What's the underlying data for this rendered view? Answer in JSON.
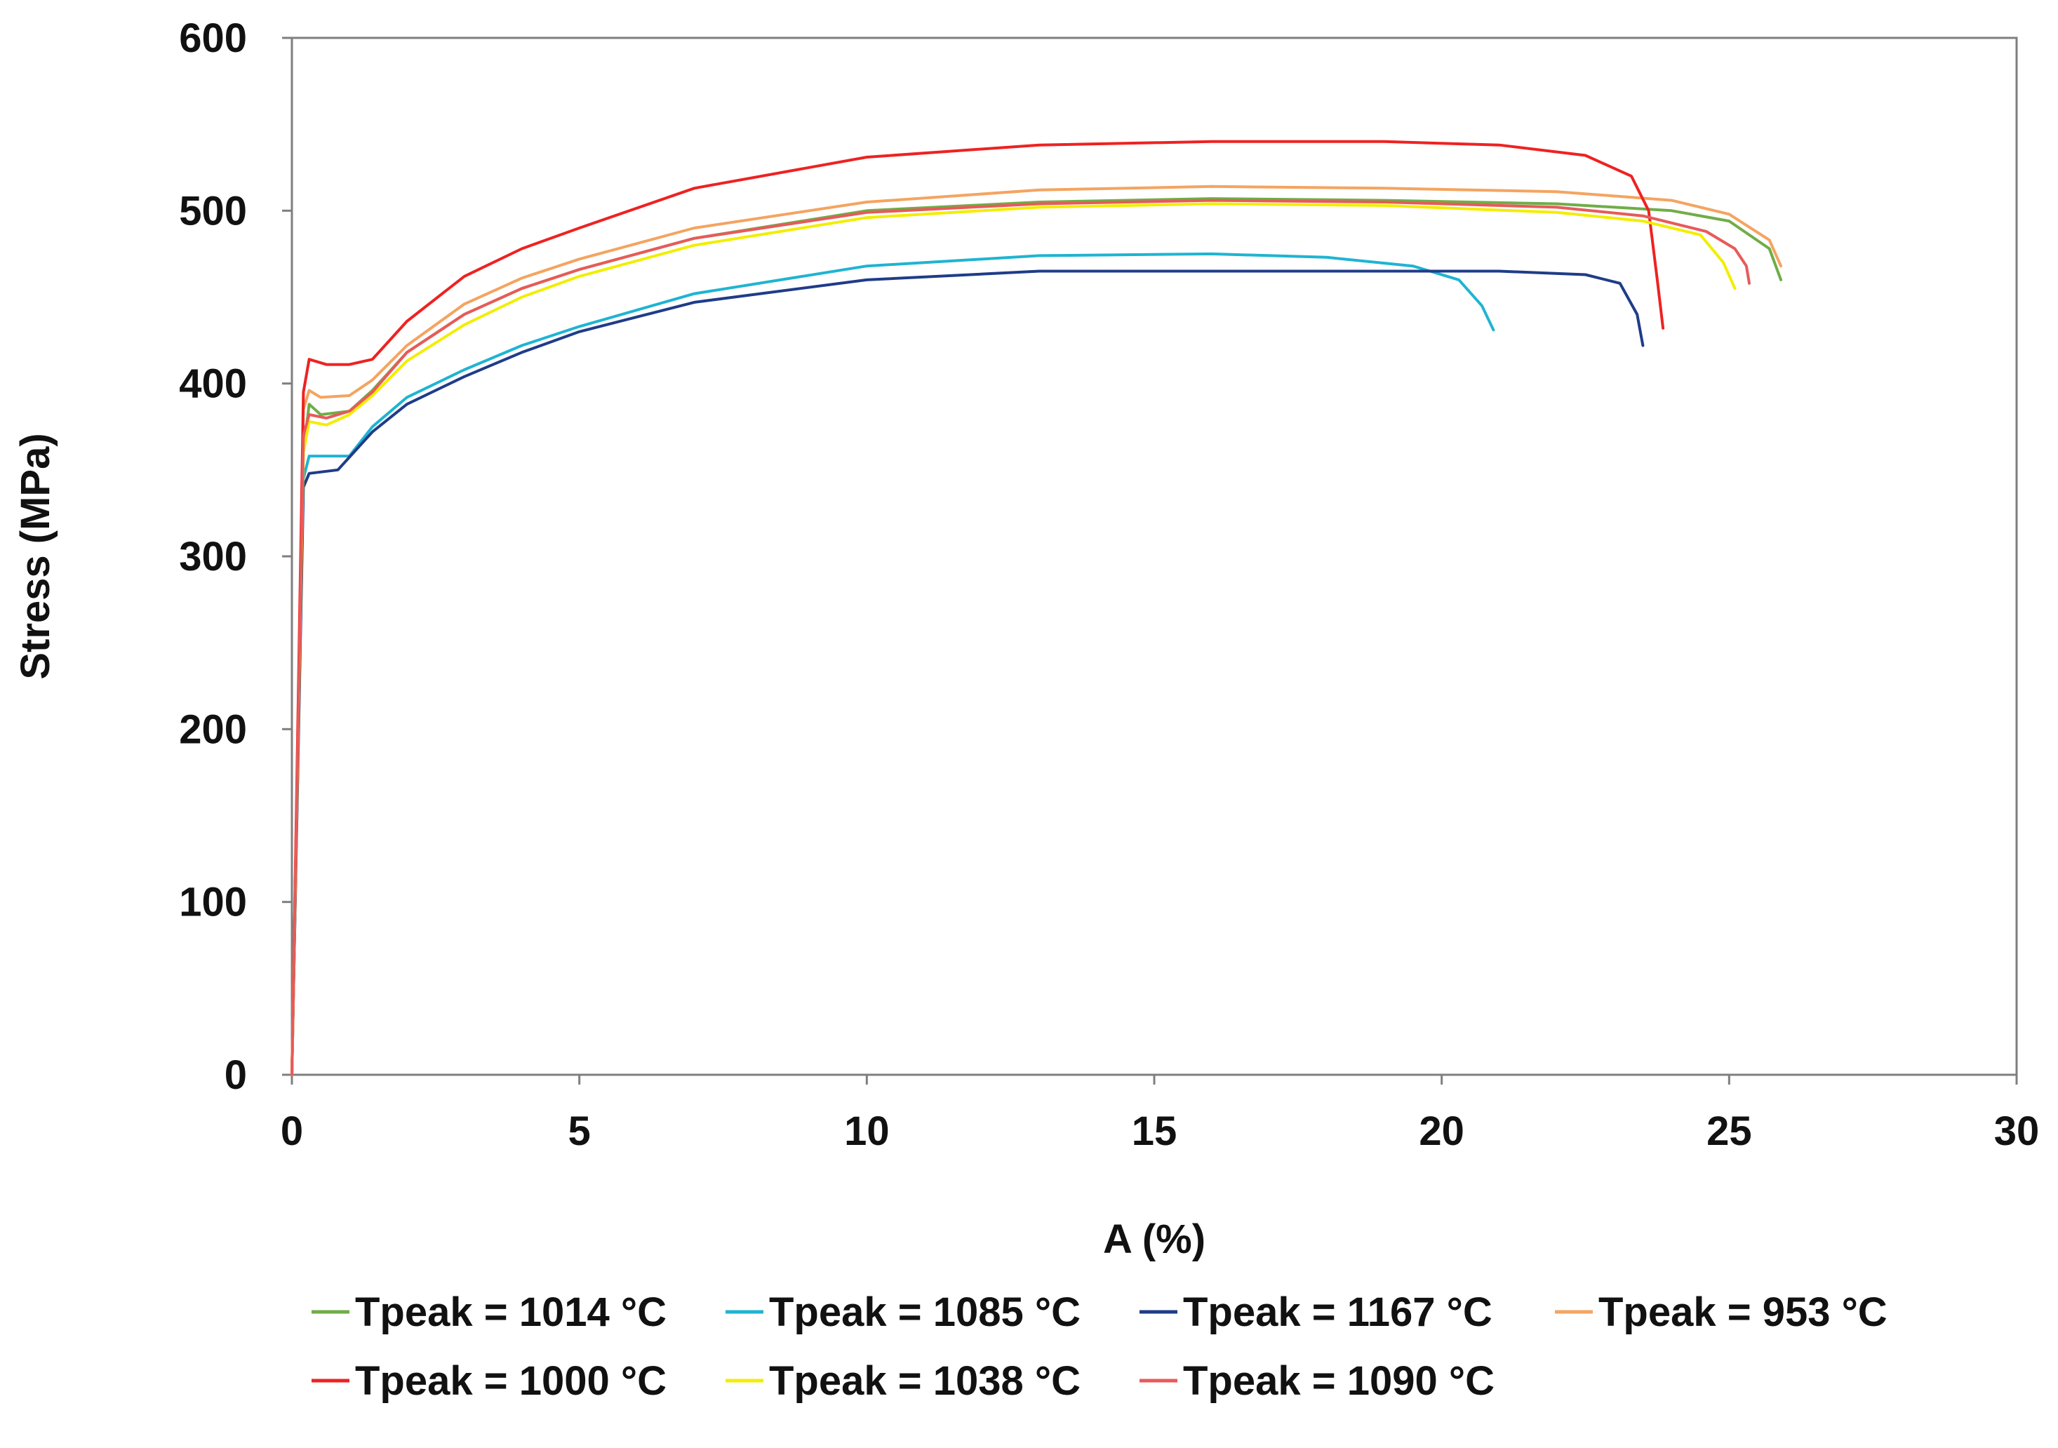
{
  "chart_data": {
    "type": "line",
    "title": "",
    "xlabel": "A (%)",
    "ylabel": "Stress (MPa)",
    "xlim": [
      0,
      30
    ],
    "ylim": [
      0,
      600
    ],
    "xticks": [
      0,
      5,
      10,
      15,
      20,
      25,
      30
    ],
    "yticks": [
      0,
      100,
      200,
      300,
      400,
      500,
      600
    ],
    "grid": false,
    "legend_position": "bottom",
    "series": [
      {
        "name": "Tpeak = 1014 °C",
        "color": "#70AD47",
        "x": [
          0,
          0.2,
          0.3,
          0.5,
          1.0,
          1.4,
          2,
          3,
          4,
          5,
          7,
          10,
          13,
          16,
          19,
          22,
          24,
          25,
          25.7,
          25.9
        ],
        "y": [
          0,
          360,
          388,
          382,
          384,
          396,
          418,
          440,
          455,
          466,
          484,
          500,
          505,
          507,
          506,
          504,
          500,
          494,
          478,
          460
        ]
      },
      {
        "name": "Tpeak = 1085 °C",
        "color": "#1FB4D2",
        "x": [
          0,
          0.2,
          0.3,
          1.0,
          1.4,
          2,
          3,
          4,
          5,
          7,
          10,
          13,
          16,
          18,
          19.5,
          20.3,
          20.7,
          20.9
        ],
        "y": [
          0,
          345,
          358,
          358,
          375,
          392,
          408,
          422,
          433,
          452,
          468,
          474,
          475,
          473,
          468,
          460,
          445,
          431
        ]
      },
      {
        "name": "Tpeak = 1167 °C",
        "color": "#1F3C88",
        "x": [
          0,
          0.2,
          0.3,
          0.8,
          1.4,
          2,
          3,
          4,
          5,
          7,
          10,
          13,
          16,
          19,
          21,
          22.5,
          23.1,
          23.4,
          23.5
        ],
        "y": [
          0,
          340,
          348,
          350,
          372,
          388,
          404,
          418,
          430,
          447,
          460,
          465,
          465,
          465,
          465,
          463,
          458,
          440,
          422
        ]
      },
      {
        "name": "Tpeak = 953 °C",
        "color": "#F4A460",
        "x": [
          0,
          0.2,
          0.3,
          0.5,
          1.0,
          1.4,
          2,
          3,
          4,
          5,
          7,
          10,
          13,
          16,
          19,
          22,
          24,
          25,
          25.7,
          25.9
        ],
        "y": [
          0,
          385,
          396,
          392,
          393,
          402,
          422,
          446,
          461,
          472,
          490,
          505,
          512,
          514,
          513,
          511,
          506,
          498,
          483,
          468
        ]
      },
      {
        "name": "Tpeak = 1000 °C",
        "color": "#EE2222",
        "x": [
          0,
          0.2,
          0.3,
          0.6,
          1.0,
          1.4,
          2,
          3,
          4,
          5,
          7,
          10,
          13,
          16,
          19,
          21,
          22.5,
          23.3,
          23.6,
          23.75,
          23.85
        ],
        "y": [
          0,
          395,
          414,
          411,
          411,
          414,
          436,
          462,
          478,
          490,
          513,
          531,
          538,
          540,
          540,
          538,
          532,
          520,
          500,
          460,
          432
        ]
      },
      {
        "name": "Tpeak = 1038 °C",
        "color": "#F2EE00",
        "x": [
          0,
          0.2,
          0.3,
          0.6,
          1.0,
          1.4,
          2,
          3,
          4,
          5,
          7,
          10,
          13,
          16,
          19,
          22,
          23.5,
          24.5,
          24.9,
          25.1
        ],
        "y": [
          0,
          360,
          378,
          376,
          382,
          393,
          413,
          434,
          450,
          462,
          480,
          496,
          502,
          504,
          503,
          499,
          494,
          486,
          470,
          455
        ]
      },
      {
        "name": "Tpeak = 1090 °C",
        "color": "#E85A5A",
        "x": [
          0,
          0.2,
          0.3,
          0.6,
          1.0,
          1.4,
          2,
          3,
          4,
          5,
          7,
          10,
          13,
          16,
          19,
          22,
          23.5,
          24.6,
          25.1,
          25.3,
          25.35
        ],
        "y": [
          0,
          370,
          382,
          380,
          384,
          395,
          418,
          440,
          455,
          466,
          484,
          499,
          504,
          506,
          505,
          502,
          497,
          488,
          478,
          468,
          458
        ]
      }
    ]
  }
}
